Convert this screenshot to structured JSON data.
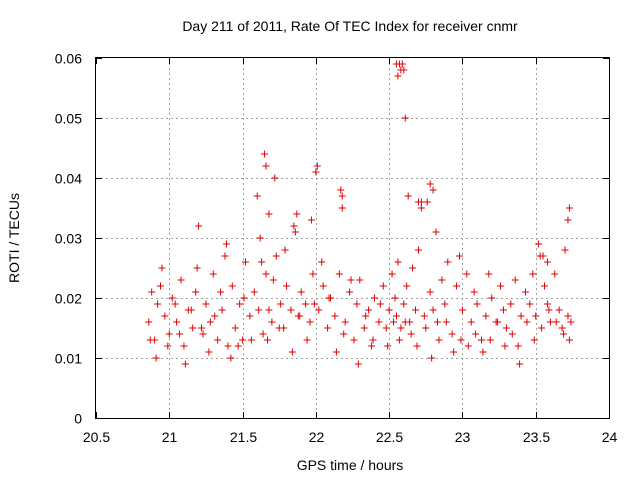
{
  "chart_data": {
    "type": "scatter",
    "title": "Day 211 of 2011, Rate Of TEC Index for receiver cnmr",
    "xlabel": "GPS time / hours",
    "ylabel": "ROTI / TECUs",
    "xlim": [
      20.5,
      24
    ],
    "ylim": [
      0,
      0.06
    ],
    "x_ticks": [
      20.5,
      21,
      21.5,
      22,
      22.5,
      23,
      23.5,
      24
    ],
    "x_tick_labels": [
      "20.5",
      "21",
      "21.5",
      "22",
      "22.5",
      "23",
      "23.5",
      "24"
    ],
    "y_ticks": [
      0,
      0.01,
      0.02,
      0.03,
      0.04,
      0.05,
      0.06
    ],
    "y_tick_labels": [
      "0",
      "0.01",
      "0.02",
      "0.03",
      "0.04",
      "0.05",
      "0.06"
    ],
    "grid": true,
    "marker": "+",
    "marker_color": "#e00000",
    "series": [
      {
        "name": "ROTI",
        "x": [
          20.86,
          20.88,
          20.9,
          20.92,
          20.95,
          20.97,
          21.0,
          21.02,
          21.05,
          21.08,
          21.1,
          21.13,
          21.16,
          21.18,
          21.2,
          21.23,
          21.25,
          21.28,
          21.3,
          21.33,
          21.36,
          21.38,
          21.4,
          21.43,
          21.45,
          21.48,
          21.5,
          21.52,
          21.55,
          21.58,
          21.6,
          21.62,
          21.64,
          21.66,
          21.68,
          21.7,
          21.73,
          21.76,
          21.78,
          21.8,
          21.83,
          21.86,
          21.88,
          21.9,
          21.93,
          21.96,
          21.98,
          22.0,
          22.02,
          22.05,
          22.08,
          22.1,
          22.13,
          22.16,
          22.18,
          22.2,
          22.23,
          22.26,
          22.28,
          22.3,
          22.33,
          22.36,
          22.38,
          22.4,
          22.43,
          22.46,
          22.48,
          22.5,
          22.52,
          22.54,
          22.55,
          22.56,
          22.58,
          22.6,
          22.62,
          22.64,
          22.66,
          22.68,
          22.7,
          22.72,
          22.75,
          22.78,
          22.8,
          22.83,
          22.86,
          22.88,
          22.9,
          22.93,
          22.96,
          22.98,
          23.0,
          23.03,
          23.06,
          23.08,
          23.1,
          23.13,
          23.16,
          23.18,
          23.2,
          23.23,
          23.26,
          23.28,
          23.3,
          23.33,
          23.36,
          23.38,
          23.4,
          23.43,
          23.46,
          23.48,
          23.5,
          23.53,
          23.56,
          23.58,
          23.6,
          23.63,
          23.66,
          23.68,
          23.7,
          23.72,
          23.74,
          20.87,
          20.91,
          20.94,
          20.99,
          21.04,
          21.07,
          21.11,
          21.15,
          21.19,
          21.22,
          21.27,
          21.31,
          21.35,
          21.39,
          21.42,
          21.47,
          21.51,
          21.56,
          21.61,
          21.63,
          21.67,
          21.71,
          21.75,
          21.79,
          21.84,
          21.89,
          21.94,
          21.99,
          22.04,
          22.09,
          22.14,
          22.19,
          22.24,
          22.29,
          22.34,
          22.39,
          22.44,
          22.49,
          22.53,
          22.57,
          22.61,
          22.65,
          22.69,
          22.74,
          22.79,
          22.84,
          22.89,
          22.94,
          22.99,
          23.04,
          23.09,
          23.14,
          23.19,
          23.24,
          23.29,
          23.34,
          23.39,
          23.44,
          23.49,
          23.54,
          23.59,
          23.64,
          23.69,
          23.73,
          21.65,
          21.66,
          21.68,
          21.72,
          21.85,
          21.87,
          21.97,
          22.01,
          22.17,
          22.18,
          22.55,
          22.56,
          22.57,
          22.58,
          22.59,
          22.6,
          22.61,
          22.63,
          22.7,
          22.72,
          22.76,
          22.78,
          22.8,
          22.82,
          23.52,
          23.55,
          23.58,
          23.72,
          23.73
        ],
        "y": [
          0.016,
          0.021,
          0.013,
          0.019,
          0.025,
          0.017,
          0.014,
          0.02,
          0.016,
          0.023,
          0.012,
          0.018,
          0.015,
          0.021,
          0.032,
          0.014,
          0.019,
          0.016,
          0.024,
          0.013,
          0.018,
          0.027,
          0.012,
          0.022,
          0.015,
          0.019,
          0.013,
          0.026,
          0.017,
          0.021,
          0.037,
          0.03,
          0.014,
          0.024,
          0.018,
          0.016,
          0.027,
          0.019,
          0.015,
          0.022,
          0.018,
          0.031,
          0.017,
          0.021,
          0.019,
          0.016,
          0.024,
          0.041,
          0.018,
          0.022,
          0.015,
          0.02,
          0.017,
          0.024,
          0.037,
          0.016,
          0.021,
          0.013,
          0.019,
          0.023,
          0.015,
          0.018,
          0.012,
          0.02,
          0.016,
          0.022,
          0.015,
          0.018,
          0.024,
          0.02,
          0.017,
          0.026,
          0.015,
          0.019,
          0.022,
          0.016,
          0.025,
          0.018,
          0.028,
          0.036,
          0.015,
          0.021,
          0.018,
          0.016,
          0.023,
          0.019,
          0.026,
          0.014,
          0.022,
          0.027,
          0.018,
          0.024,
          0.016,
          0.021,
          0.019,
          0.013,
          0.017,
          0.024,
          0.02,
          0.016,
          0.022,
          0.018,
          0.015,
          0.019,
          0.023,
          0.012,
          0.017,
          0.021,
          0.019,
          0.024,
          0.017,
          0.027,
          0.022,
          0.019,
          0.016,
          0.024,
          0.018,
          0.015,
          0.028,
          0.017,
          0.016,
          0.013,
          0.01,
          0.022,
          0.012,
          0.019,
          0.014,
          0.009,
          0.018,
          0.025,
          0.015,
          0.011,
          0.017,
          0.021,
          0.029,
          0.01,
          0.012,
          0.02,
          0.013,
          0.018,
          0.026,
          0.013,
          0.023,
          0.015,
          0.028,
          0.011,
          0.017,
          0.013,
          0.019,
          0.026,
          0.02,
          0.011,
          0.014,
          0.023,
          0.009,
          0.017,
          0.013,
          0.019,
          0.012,
          0.016,
          0.013,
          0.016,
          0.014,
          0.012,
          0.017,
          0.01,
          0.013,
          0.016,
          0.011,
          0.013,
          0.012,
          0.014,
          0.011,
          0.013,
          0.016,
          0.012,
          0.014,
          0.009,
          0.016,
          0.013,
          0.015,
          0.018,
          0.016,
          0.014,
          0.013,
          0.044,
          0.042,
          0.034,
          0.04,
          0.032,
          0.034,
          0.033,
          0.042,
          0.038,
          0.035,
          0.059,
          0.057,
          0.059,
          0.058,
          0.059,
          0.058,
          0.05,
          0.037,
          0.036,
          0.035,
          0.036,
          0.039,
          0.038,
          0.031,
          0.029,
          0.027,
          0.026,
          0.033,
          0.035
        ]
      }
    ]
  }
}
